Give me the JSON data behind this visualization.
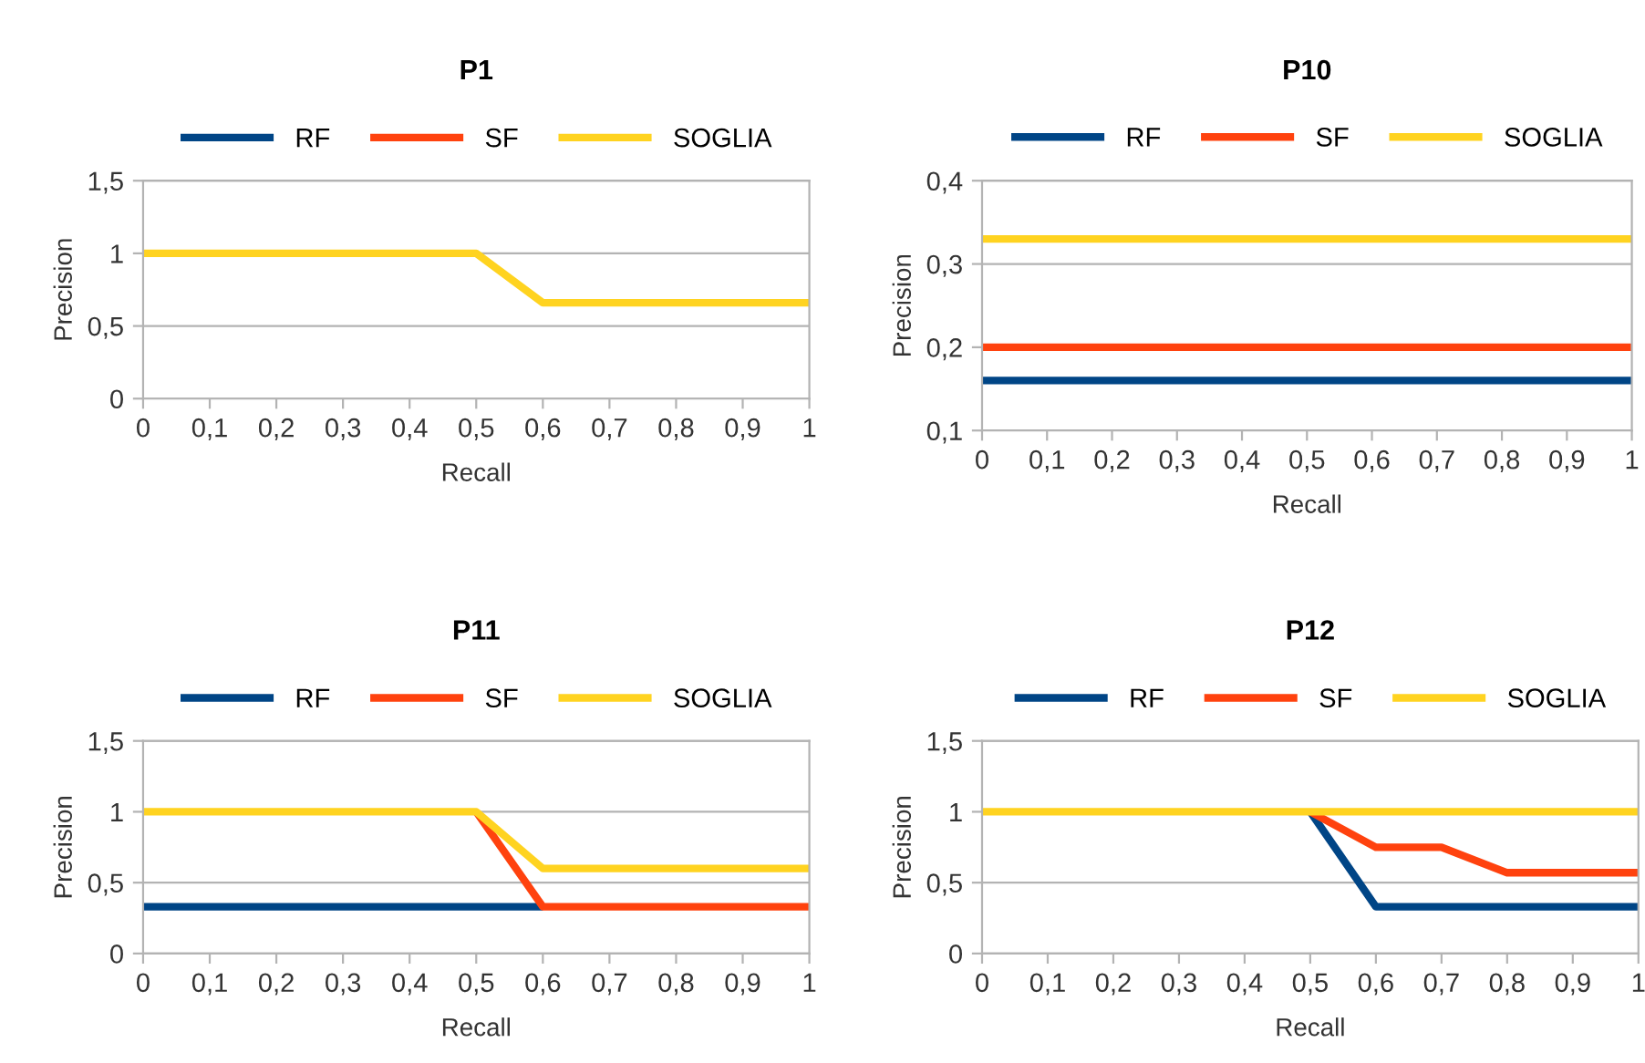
{
  "chart_data": [
    {
      "type": "line",
      "title": "P1",
      "xlabel": "Recall",
      "ylabel": "Precision",
      "x": [
        0,
        0.1,
        0.2,
        0.3,
        0.4,
        0.5,
        0.6,
        0.7,
        0.8,
        0.9,
        1
      ],
      "xlim": [
        0,
        1
      ],
      "ylim": [
        0,
        1.5
      ],
      "xticks": [
        0,
        {
          "value": 0.1,
          "label": "0,1"
        },
        {
          "value": 0.2,
          "label": "0,2"
        },
        {
          "value": 0.3,
          "label": "0,3"
        },
        {
          "value": 0.4,
          "label": "0,4"
        },
        {
          "value": 0.5,
          "label": "0,5"
        },
        {
          "value": 0.6,
          "label": "0,6"
        },
        {
          "value": 0.7,
          "label": "0,7"
        },
        {
          "value": 0.8,
          "label": "0,8"
        },
        {
          "value": 0.9,
          "label": "0,9"
        },
        1
      ],
      "yticks": [
        0,
        {
          "value": 0.5,
          "label": "0,5"
        },
        1,
        {
          "value": 1.5,
          "label": "1,5"
        }
      ],
      "grid": "y",
      "legend": "top",
      "marker": "none",
      "line_style": "solid",
      "series": [
        {
          "name": "RF",
          "color": "#004586",
          "values": [
            null,
            null,
            null,
            null,
            null,
            null,
            null,
            null,
            null,
            null,
            null
          ]
        },
        {
          "name": "SF",
          "color": "#ff420e",
          "values": [
            null,
            null,
            null,
            null,
            null,
            null,
            null,
            null,
            null,
            null,
            null
          ]
        },
        {
          "name": "SOGLIA",
          "color": "#ffd320",
          "values": [
            1,
            1,
            1,
            1,
            1,
            1,
            0.66,
            0.66,
            0.66,
            0.66,
            0.66
          ]
        }
      ]
    },
    {
      "type": "line",
      "title": "P10",
      "xlabel": "Recall",
      "ylabel": "Precision",
      "x": [
        0,
        0.1,
        0.2,
        0.3,
        0.4,
        0.5,
        0.6,
        0.7,
        0.8,
        0.9,
        1
      ],
      "xlim": [
        0,
        1
      ],
      "ylim": [
        0.1,
        0.4
      ],
      "xticks": [
        0,
        {
          "value": 0.1,
          "label": "0,1"
        },
        {
          "value": 0.2,
          "label": "0,2"
        },
        {
          "value": 0.3,
          "label": "0,3"
        },
        {
          "value": 0.4,
          "label": "0,4"
        },
        {
          "value": 0.5,
          "label": "0,5"
        },
        {
          "value": 0.6,
          "label": "0,6"
        },
        {
          "value": 0.7,
          "label": "0,7"
        },
        {
          "value": 0.8,
          "label": "0,8"
        },
        {
          "value": 0.9,
          "label": "0,9"
        },
        1
      ],
      "yticks": [
        {
          "value": 0.1,
          "label": "0,1"
        },
        {
          "value": 0.2,
          "label": "0,2"
        },
        {
          "value": 0.3,
          "label": "0,3"
        },
        {
          "value": 0.4,
          "label": "0,4"
        }
      ],
      "grid": "y",
      "legend": "top",
      "marker": "none",
      "line_style": "solid",
      "series": [
        {
          "name": "RF",
          "color": "#004586",
          "values": [
            0.16,
            0.16,
            0.16,
            0.16,
            0.16,
            0.16,
            0.16,
            0.16,
            0.16,
            0.16,
            0.16
          ]
        },
        {
          "name": "SF",
          "color": "#ff420e",
          "values": [
            0.2,
            0.2,
            0.2,
            0.2,
            0.2,
            0.2,
            0.2,
            0.2,
            0.2,
            0.2,
            0.2
          ]
        },
        {
          "name": "SOGLIA",
          "color": "#ffd320",
          "values": [
            0.33,
            0.33,
            0.33,
            0.33,
            0.33,
            0.33,
            0.33,
            0.33,
            0.33,
            0.33,
            0.33
          ]
        }
      ]
    },
    {
      "type": "line",
      "title": "P11",
      "xlabel": "Recall",
      "ylabel": "Precision",
      "x": [
        0,
        0.1,
        0.2,
        0.3,
        0.4,
        0.5,
        0.6,
        0.7,
        0.8,
        0.9,
        1
      ],
      "xlim": [
        0,
        1
      ],
      "ylim": [
        0,
        1.5
      ],
      "xticks": [
        0,
        {
          "value": 0.1,
          "label": "0,1"
        },
        {
          "value": 0.2,
          "label": "0,2"
        },
        {
          "value": 0.3,
          "label": "0,3"
        },
        {
          "value": 0.4,
          "label": "0,4"
        },
        {
          "value": 0.5,
          "label": "0,5"
        },
        {
          "value": 0.6,
          "label": "0,6"
        },
        {
          "value": 0.7,
          "label": "0,7"
        },
        {
          "value": 0.8,
          "label": "0,8"
        },
        {
          "value": 0.9,
          "label": "0,9"
        },
        1
      ],
      "yticks": [
        0,
        {
          "value": 0.5,
          "label": "0,5"
        },
        1,
        {
          "value": 1.5,
          "label": "1,5"
        }
      ],
      "grid": "y",
      "legend": "top",
      "marker": "none",
      "line_style": "solid",
      "series": [
        {
          "name": "RF",
          "color": "#004586",
          "values": [
            0.33,
            0.33,
            0.33,
            0.33,
            0.33,
            0.33,
            0.33,
            null,
            null,
            null,
            null
          ]
        },
        {
          "name": "SF",
          "color": "#ff420e",
          "values": [
            null,
            null,
            null,
            null,
            null,
            1,
            0.33,
            0.33,
            0.33,
            0.33,
            0.33
          ]
        },
        {
          "name": "SOGLIA",
          "color": "#ffd320",
          "values": [
            1,
            1,
            1,
            1,
            1,
            1,
            0.6,
            0.6,
            0.6,
            0.6,
            0.6
          ]
        }
      ]
    },
    {
      "type": "line",
      "title": "P12",
      "xlabel": "Recall",
      "ylabel": "Precision",
      "x": [
        0,
        0.1,
        0.2,
        0.3,
        0.4,
        0.5,
        0.6,
        0.7,
        0.8,
        0.9,
        1
      ],
      "xlim": [
        0,
        1
      ],
      "ylim": [
        0,
        1.5
      ],
      "xticks": [
        0,
        {
          "value": 0.1,
          "label": "0,1"
        },
        {
          "value": 0.2,
          "label": "0,2"
        },
        {
          "value": 0.3,
          "label": "0,3"
        },
        {
          "value": 0.4,
          "label": "0,4"
        },
        {
          "value": 0.5,
          "label": "0,5"
        },
        {
          "value": 0.6,
          "label": "0,6"
        },
        {
          "value": 0.7,
          "label": "0,7"
        },
        {
          "value": 0.8,
          "label": "0,8"
        },
        {
          "value": 0.9,
          "label": "0,9"
        },
        1
      ],
      "yticks": [
        0,
        {
          "value": 0.5,
          "label": "0,5"
        },
        1,
        {
          "value": 1.5,
          "label": "1,5"
        }
      ],
      "grid": "y",
      "legend": "top",
      "marker": "none",
      "line_style": "solid",
      "series": [
        {
          "name": "RF",
          "color": "#004586",
          "values": [
            null,
            null,
            null,
            null,
            null,
            1,
            0.33,
            0.33,
            0.33,
            0.33,
            0.33
          ]
        },
        {
          "name": "SF",
          "color": "#ff420e",
          "values": [
            null,
            null,
            null,
            null,
            null,
            1,
            0.75,
            0.75,
            0.57,
            0.57,
            0.57
          ]
        },
        {
          "name": "SOGLIA",
          "color": "#ffd320",
          "values": [
            1,
            1,
            1,
            1,
            1,
            1,
            1,
            1,
            1,
            1,
            1
          ]
        }
      ]
    }
  ]
}
